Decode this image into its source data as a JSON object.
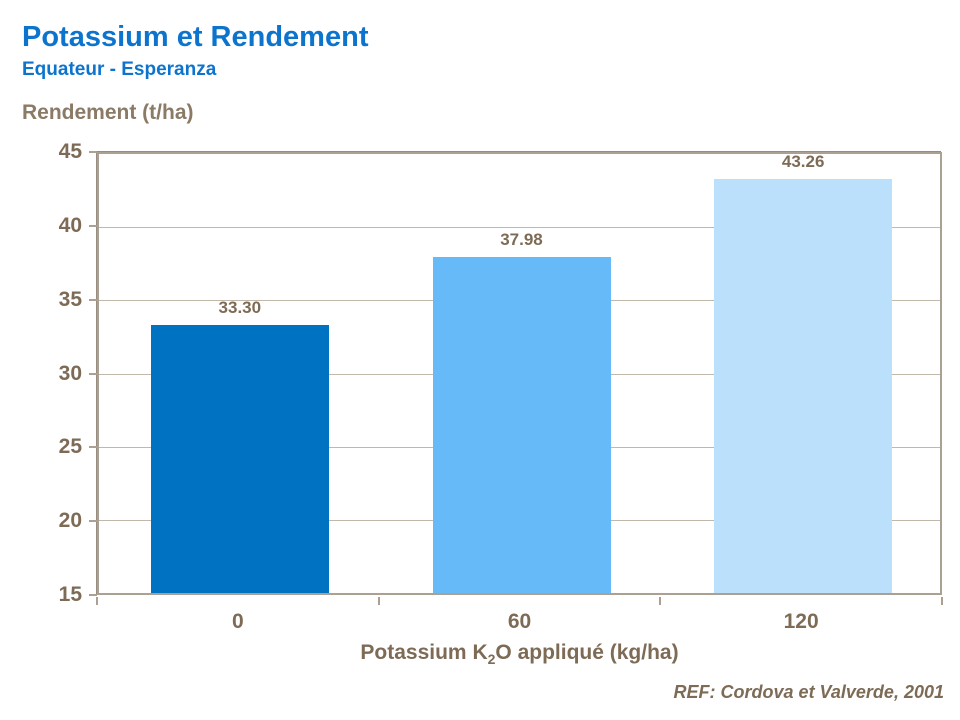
{
  "header": {
    "title": "Potassium et Rendement",
    "subtitle": "Equateur - Esperanza"
  },
  "footer": {
    "reference": "REF: Cordova et Valverde, 2001"
  },
  "colors": {
    "title_blue": "#0d74ce",
    "label_brown": "#7d6b56",
    "axis_line": "#aba092",
    "gridline": "#c1b8aa",
    "bars": [
      "#0072c2",
      "#66baf8",
      "#bae0fb"
    ]
  },
  "chart_data": {
    "type": "bar",
    "title": "Potassium et Rendement",
    "subtitle": "Equateur - Esperanza",
    "ylabel": "Rendement (t/ha)",
    "xlabel": "Potassium K2O appliqué (kg/ha)",
    "xlabel_parts": {
      "prefix": "Potassium K",
      "sub": "2",
      "suffix": "O appliqué (kg/ha)"
    },
    "categories": [
      "0",
      "60",
      "120"
    ],
    "values": [
      33.3,
      37.98,
      43.26
    ],
    "value_labels": [
      "33.30",
      "37.98",
      "43.26"
    ],
    "ylim": [
      15,
      45
    ],
    "yticks": [
      15,
      20,
      25,
      30,
      35,
      40,
      45
    ],
    "grid": "horizontal",
    "legend": "none",
    "annotation": "REF: Cordova et Valverde, 2001"
  }
}
